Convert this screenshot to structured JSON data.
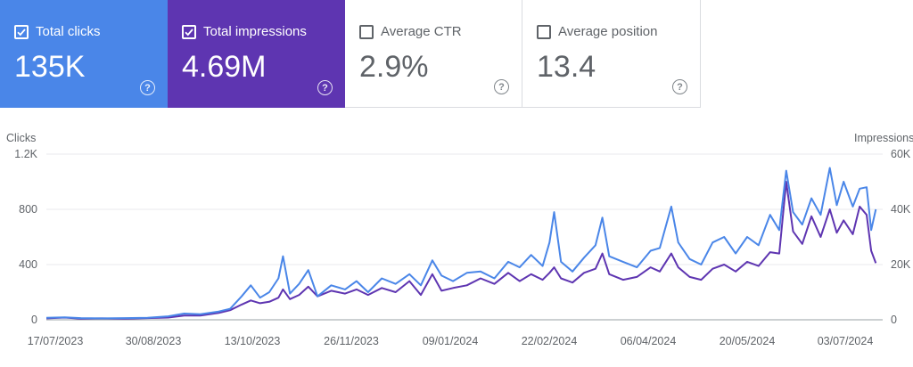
{
  "metrics": [
    {
      "label": "Total clicks",
      "value": "135K",
      "checked": true,
      "color": "#4a86e8"
    },
    {
      "label": "Total impressions",
      "value": "4.69M",
      "checked": true,
      "color": "#5e35b1"
    },
    {
      "label": "Average CTR",
      "value": "2.9%",
      "checked": false,
      "color": "#ffffff"
    },
    {
      "label": "Average position",
      "value": "13.4",
      "checked": false,
      "color": "#ffffff"
    }
  ],
  "help_icon": "help-circle-icon",
  "check_icon": "checkbox-checked-icon",
  "chart_data": {
    "type": "line",
    "left_axis_label": "Clicks",
    "right_axis_label": "Impressions",
    "left_ticks": [
      "0",
      "400",
      "800",
      "1.2K"
    ],
    "right_ticks": [
      "0",
      "20K",
      "40K",
      "60K"
    ],
    "left_range": [
      0,
      1200
    ],
    "right_range": [
      0,
      60000
    ],
    "x_ticks": [
      "17/07/2023",
      "30/08/2023",
      "13/10/2023",
      "26/11/2023",
      "09/01/2024",
      "22/02/2024",
      "06/04/2024",
      "20/05/2024",
      "03/07/2024"
    ],
    "x_range": [
      "2023-07-17",
      "2024-07-15"
    ],
    "grid": true,
    "series": [
      {
        "name": "Clicks",
        "axis": "left",
        "color": "#4a86e8",
        "points": [
          [
            "2023-07-17",
            15
          ],
          [
            "2023-07-25",
            18
          ],
          [
            "2023-08-01",
            12
          ],
          [
            "2023-08-10",
            10
          ],
          [
            "2023-08-20",
            12
          ],
          [
            "2023-08-30",
            15
          ],
          [
            "2023-09-08",
            25
          ],
          [
            "2023-09-15",
            45
          ],
          [
            "2023-09-22",
            40
          ],
          [
            "2023-09-30",
            60
          ],
          [
            "2023-10-05",
            80
          ],
          [
            "2023-10-10",
            170
          ],
          [
            "2023-10-14",
            250
          ],
          [
            "2023-10-18",
            160
          ],
          [
            "2023-10-22",
            200
          ],
          [
            "2023-10-26",
            300
          ],
          [
            "2023-10-28",
            460
          ],
          [
            "2023-10-31",
            190
          ],
          [
            "2023-11-04",
            260
          ],
          [
            "2023-11-08",
            360
          ],
          [
            "2023-11-12",
            170
          ],
          [
            "2023-11-18",
            250
          ],
          [
            "2023-11-24",
            220
          ],
          [
            "2023-11-29",
            280
          ],
          [
            "2023-12-04",
            200
          ],
          [
            "2023-12-10",
            300
          ],
          [
            "2023-12-16",
            260
          ],
          [
            "2023-12-22",
            330
          ],
          [
            "2023-12-27",
            250
          ],
          [
            "2024-01-01",
            430
          ],
          [
            "2024-01-05",
            320
          ],
          [
            "2024-01-10",
            280
          ],
          [
            "2024-01-16",
            340
          ],
          [
            "2024-01-22",
            350
          ],
          [
            "2024-01-28",
            300
          ],
          [
            "2024-02-03",
            420
          ],
          [
            "2024-02-08",
            380
          ],
          [
            "2024-02-13",
            470
          ],
          [
            "2024-02-18",
            390
          ],
          [
            "2024-02-21",
            560
          ],
          [
            "2024-02-23",
            780
          ],
          [
            "2024-02-26",
            420
          ],
          [
            "2024-03-02",
            350
          ],
          [
            "2024-03-07",
            450
          ],
          [
            "2024-03-12",
            540
          ],
          [
            "2024-03-15",
            740
          ],
          [
            "2024-03-18",
            460
          ],
          [
            "2024-03-24",
            420
          ],
          [
            "2024-03-30",
            380
          ],
          [
            "2024-04-05",
            500
          ],
          [
            "2024-04-09",
            520
          ],
          [
            "2024-04-14",
            820
          ],
          [
            "2024-04-17",
            560
          ],
          [
            "2024-04-22",
            440
          ],
          [
            "2024-04-27",
            400
          ],
          [
            "2024-05-02",
            560
          ],
          [
            "2024-05-07",
            600
          ],
          [
            "2024-05-12",
            480
          ],
          [
            "2024-05-17",
            600
          ],
          [
            "2024-05-22",
            540
          ],
          [
            "2024-05-27",
            760
          ],
          [
            "2024-05-31",
            650
          ],
          [
            "2024-06-03",
            1080
          ],
          [
            "2024-06-06",
            780
          ],
          [
            "2024-06-10",
            690
          ],
          [
            "2024-06-14",
            880
          ],
          [
            "2024-06-18",
            760
          ],
          [
            "2024-06-22",
            1100
          ],
          [
            "2024-06-25",
            830
          ],
          [
            "2024-06-28",
            1000
          ],
          [
            "2024-07-02",
            820
          ],
          [
            "2024-07-05",
            950
          ],
          [
            "2024-07-08",
            960
          ],
          [
            "2024-07-10",
            650
          ],
          [
            "2024-07-12",
            800
          ]
        ]
      },
      {
        "name": "Impressions",
        "axis": "right",
        "color": "#5e35b1",
        "points": [
          [
            "2023-07-17",
            500
          ],
          [
            "2023-07-25",
            800
          ],
          [
            "2023-08-01",
            400
          ],
          [
            "2023-08-10",
            500
          ],
          [
            "2023-08-20",
            400
          ],
          [
            "2023-08-30",
            600
          ],
          [
            "2023-09-08",
            800
          ],
          [
            "2023-09-15",
            1500
          ],
          [
            "2023-09-22",
            1500
          ],
          [
            "2023-09-30",
            2500
          ],
          [
            "2023-10-05",
            3500
          ],
          [
            "2023-10-10",
            5500
          ],
          [
            "2023-10-14",
            7000
          ],
          [
            "2023-10-18",
            6000
          ],
          [
            "2023-10-22",
            6500
          ],
          [
            "2023-10-26",
            8000
          ],
          [
            "2023-10-28",
            11000
          ],
          [
            "2023-10-31",
            7500
          ],
          [
            "2023-11-04",
            9000
          ],
          [
            "2023-11-08",
            12000
          ],
          [
            "2023-11-12",
            8500
          ],
          [
            "2023-11-18",
            10500
          ],
          [
            "2023-11-24",
            9500
          ],
          [
            "2023-11-29",
            11000
          ],
          [
            "2023-12-04",
            9000
          ],
          [
            "2023-12-10",
            11500
          ],
          [
            "2023-12-16",
            10000
          ],
          [
            "2023-12-22",
            14000
          ],
          [
            "2023-12-27",
            9000
          ],
          [
            "2024-01-01",
            16500
          ],
          [
            "2024-01-05",
            10500
          ],
          [
            "2024-01-10",
            11500
          ],
          [
            "2024-01-16",
            12500
          ],
          [
            "2024-01-22",
            15000
          ],
          [
            "2024-01-28",
            13000
          ],
          [
            "2024-02-03",
            17000
          ],
          [
            "2024-02-08",
            14000
          ],
          [
            "2024-02-13",
            16500
          ],
          [
            "2024-02-18",
            14500
          ],
          [
            "2024-02-21",
            17000
          ],
          [
            "2024-02-23",
            19000
          ],
          [
            "2024-02-26",
            15000
          ],
          [
            "2024-03-02",
            13500
          ],
          [
            "2024-03-07",
            17000
          ],
          [
            "2024-03-12",
            18500
          ],
          [
            "2024-03-15",
            24000
          ],
          [
            "2024-03-18",
            16500
          ],
          [
            "2024-03-24",
            14500
          ],
          [
            "2024-03-30",
            15500
          ],
          [
            "2024-04-05",
            19000
          ],
          [
            "2024-04-09",
            17500
          ],
          [
            "2024-04-14",
            24000
          ],
          [
            "2024-04-17",
            19000
          ],
          [
            "2024-04-22",
            15500
          ],
          [
            "2024-04-27",
            14500
          ],
          [
            "2024-05-02",
            18500
          ],
          [
            "2024-05-07",
            20000
          ],
          [
            "2024-05-12",
            17500
          ],
          [
            "2024-05-17",
            21000
          ],
          [
            "2024-05-22",
            19500
          ],
          [
            "2024-05-27",
            24500
          ],
          [
            "2024-05-31",
            24000
          ],
          [
            "2024-06-03",
            50000
          ],
          [
            "2024-06-06",
            32000
          ],
          [
            "2024-06-10",
            27500
          ],
          [
            "2024-06-14",
            37500
          ],
          [
            "2024-06-18",
            30000
          ],
          [
            "2024-06-22",
            40000
          ],
          [
            "2024-06-25",
            31500
          ],
          [
            "2024-06-28",
            36000
          ],
          [
            "2024-07-02",
            31000
          ],
          [
            "2024-07-05",
            41000
          ],
          [
            "2024-07-08",
            38000
          ],
          [
            "2024-07-10",
            25000
          ],
          [
            "2024-07-12",
            20500
          ]
        ]
      }
    ]
  }
}
